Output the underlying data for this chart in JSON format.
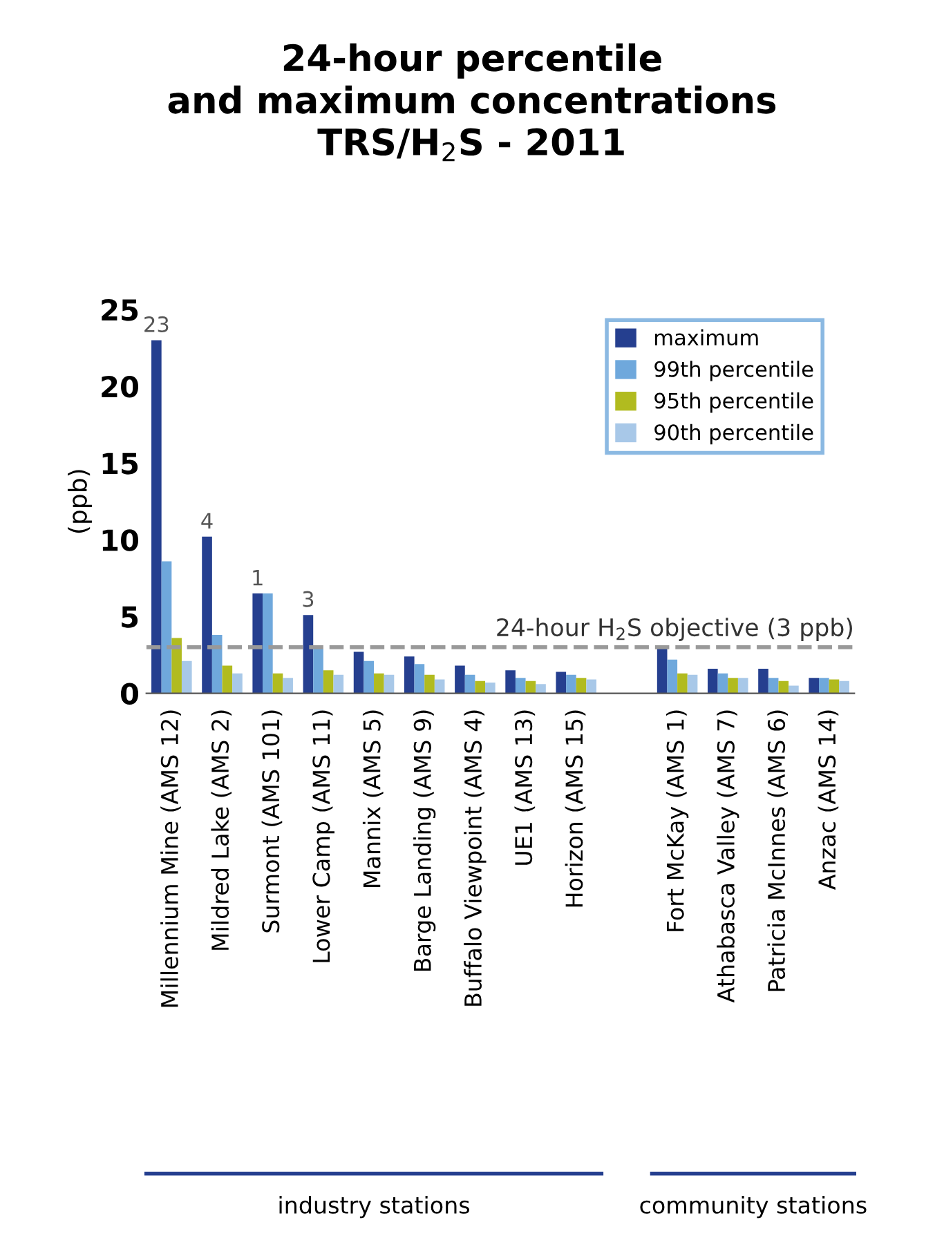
{
  "chart_data": {
    "type": "bar",
    "title": "24-hour percentile\nand maximum concentrations\nTRS/H$_{2}$S - 2011",
    "ylabel": "(ppb)",
    "categories": [
      "Millennium Mine (AMS 12)",
      "Mildred Lake (AMS 2)",
      "Surmont (AMS 101)",
      "Lower Camp (AMS 11)",
      "Mannix (AMS 5)",
      "Barge Landing (AMS 9)",
      "Buffalo Viewpoint (AMS 4)",
      "UE1 (AMS 13)",
      "Horizon (AMS 15)",
      null,
      "Fort McKay (AMS 1)",
      "Athabasca Valley (AMS 7)",
      "Patricia McInnes (AMS 6)",
      "Anzac (AMS 14)"
    ],
    "series": [
      {
        "name": "maximum",
        "color": "#253f8f",
        "values": [
          23,
          10.2,
          6.5,
          5.1,
          2.7,
          2.4,
          1.8,
          1.5,
          1.4,
          null,
          3.0,
          1.6,
          1.6,
          1.0
        ]
      },
      {
        "name": "99th percentile",
        "color": "#6fa8dc",
        "values": [
          8.6,
          3.8,
          6.5,
          2.9,
          2.1,
          1.9,
          1.2,
          1.0,
          1.2,
          null,
          2.2,
          1.3,
          1.0,
          1.0
        ]
      },
      {
        "name": "95th percentile",
        "color": "#b1bb1f",
        "values": [
          3.6,
          1.8,
          1.3,
          1.5,
          1.3,
          1.2,
          0.8,
          0.8,
          1.0,
          null,
          1.3,
          1.0,
          0.8,
          0.9
        ]
      },
      {
        "name": "90th percentile",
        "color": "#a8c8e8",
        "values": [
          2.1,
          1.3,
          1.0,
          1.2,
          1.2,
          0.9,
          0.7,
          0.6,
          0.9,
          null,
          1.2,
          1.0,
          0.5,
          0.8
        ]
      }
    ],
    "ylim": [
      0,
      25
    ],
    "yticks": [
      0,
      5,
      10,
      15,
      20,
      25
    ],
    "ref_lines": [
      {
        "axis": "y",
        "value": 3,
        "label": "24-hour H$_{2}$S objective (3 ppb)",
        "color": "#999999",
        "line_style": "dashed"
      }
    ],
    "annotations": [
      "23",
      "4",
      "1",
      "3",
      "industry stations",
      "community stations"
    ],
    "legend": "top right",
    "grid": false
  }
}
